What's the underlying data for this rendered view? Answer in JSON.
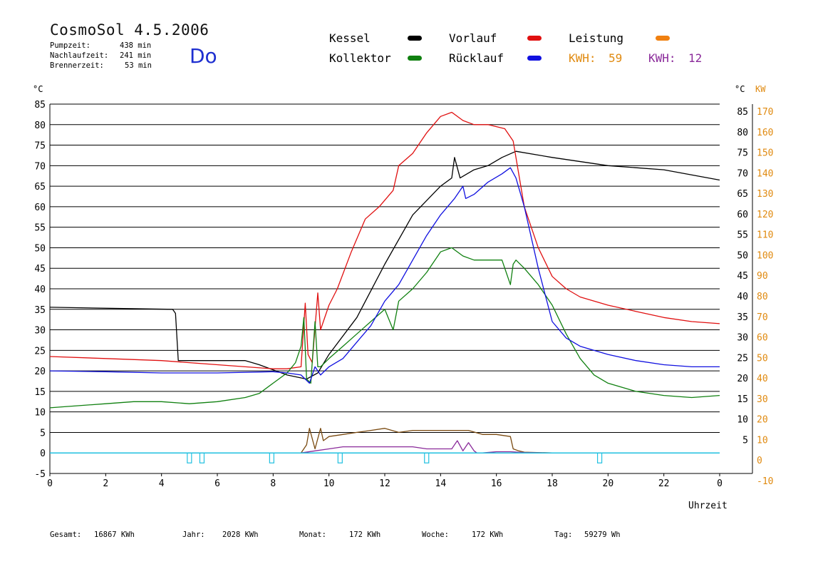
{
  "header": {
    "title": "CosmoSol 4.5.2006",
    "day": "Do",
    "stats": [
      {
        "label": "Pumpzeit:",
        "value": "438 min"
      },
      {
        "label": "Nachlaufzeit:",
        "value": "241 min"
      },
      {
        "label": "Brennerzeit:",
        "value": "53 min"
      }
    ]
  },
  "legend": {
    "kessel": {
      "label": "Kessel",
      "color": "#000000"
    },
    "vorlauf": {
      "label": "Vorlauf",
      "color": "#e01010"
    },
    "leistung": {
      "label": "Leistung",
      "color": "#f08010"
    },
    "kollektor": {
      "label": "Kollektor",
      "color": "#108010"
    },
    "ruecklauf": {
      "label": "Rücklauf",
      "color": "#1010e0"
    },
    "kwh1": {
      "label": "KWH:",
      "value": "59",
      "color": "#e08a10"
    },
    "kwh2": {
      "label": "KWH:",
      "value": "12",
      "color": "#8a2a9a"
    }
  },
  "axes": {
    "left_unit": "°C",
    "right_unit_c": "°C",
    "right_unit_kw": "KW",
    "xlabel": "Uhrzeit"
  },
  "footer": [
    {
      "label": "Gesamt:",
      "value": "16867 KWh"
    },
    {
      "label": "Jahr:",
      "value": "2028 KWh"
    },
    {
      "label": "Monat:",
      "value": "172 KWh"
    },
    {
      "label": "Woche:",
      "value": "172 KWh"
    },
    {
      "label": "Tag:",
      "value": "59279 Wh"
    }
  ],
  "chart_data": {
    "type": "line",
    "xlim": [
      0,
      24
    ],
    "ylim": [
      -5,
      85
    ],
    "x_ticks": [
      "0",
      "2",
      "4",
      "6",
      "8",
      "10",
      "12",
      "14",
      "16",
      "18",
      "20",
      "22",
      "0"
    ],
    "y_ticks_left": [
      "85",
      "80",
      "75",
      "70",
      "65",
      "60",
      "55",
      "50",
      "45",
      "40",
      "35",
      "30",
      "25",
      "20",
      "15",
      "10",
      "5",
      "0",
      "-5"
    ],
    "y_ticks_right_c": [
      "85",
      "80",
      "75",
      "70",
      "65",
      "60",
      "55",
      "50",
      "45",
      "40",
      "35",
      "30",
      "25",
      "20",
      "15",
      "10",
      "5"
    ],
    "y_ticks_right_kw": [
      "170",
      "160",
      "150",
      "140",
      "130",
      "120",
      "110",
      "100",
      "90",
      "80",
      "70",
      "60",
      "50",
      "40",
      "30",
      "20",
      "10",
      "0",
      "-10"
    ],
    "grid": true,
    "series": [
      {
        "name": "Kessel",
        "color": "#000000",
        "x": [
          0,
          4.4,
          4.5,
          4.6,
          5,
          6,
          7,
          7.5,
          8.5,
          9.2,
          9.6,
          10,
          11,
          12,
          13,
          14,
          14.4,
          14.5,
          14.7,
          15.2,
          15.7,
          16.2,
          16.7,
          18,
          20,
          22,
          24
        ],
        "y": [
          35.5,
          35,
          34,
          22.5,
          22.5,
          22.5,
          22.5,
          21.5,
          19,
          18,
          19.5,
          24,
          33,
          46,
          58,
          65,
          67,
          72,
          67,
          69,
          70,
          72,
          73.5,
          72,
          70,
          69,
          66.5
        ]
      },
      {
        "name": "Vorlauf",
        "color": "#e01010",
        "x": [
          0,
          2,
          4,
          5,
          6,
          7,
          8,
          8.5,
          9.0,
          9.15,
          9.25,
          9.4,
          9.6,
          9.7,
          9.8,
          10,
          10.3,
          10.8,
          11.3,
          11.8,
          12.3,
          12.5,
          13,
          13.5,
          14,
          14.4,
          14.8,
          15.2,
          15.7,
          16.3,
          16.6,
          17,
          17.5,
          18,
          18.5,
          19,
          20,
          21,
          22,
          23,
          24
        ],
        "y": [
          23.5,
          23,
          22.5,
          22,
          21.5,
          21,
          20.5,
          20.5,
          21,
          36.5,
          24,
          22,
          39,
          30,
          32,
          36,
          40,
          49,
          57,
          60,
          64,
          70,
          73,
          78,
          82,
          83,
          81,
          80,
          80,
          79,
          76,
          60,
          50,
          43,
          40,
          38,
          36,
          34.5,
          33,
          32,
          31.5
        ]
      },
      {
        "name": "Kollektor",
        "color": "#108010",
        "x": [
          0,
          1,
          2,
          3,
          4,
          5,
          6,
          7,
          7.5,
          8,
          8.5,
          8.8,
          9.0,
          9.1,
          9.2,
          9.35,
          9.5,
          9.6,
          9.7,
          10,
          10.5,
          11,
          11.5,
          12,
          12.3,
          12.5,
          13,
          13.5,
          14,
          14.4,
          14.8,
          15.2,
          15.7,
          16.2,
          16.5,
          16.6,
          16.7,
          17,
          17.5,
          18,
          18.5,
          19,
          19.5,
          20,
          21,
          22,
          23,
          24
        ],
        "y": [
          11,
          11.5,
          12,
          12.5,
          12.5,
          12,
          12.5,
          13.5,
          14.5,
          17,
          19.5,
          22,
          26,
          33,
          18,
          17,
          32,
          21,
          21,
          23,
          26,
          29,
          32,
          35,
          30,
          37,
          40,
          44,
          49,
          50,
          48,
          47,
          47,
          47,
          41,
          46,
          47,
          45,
          41,
          36,
          29,
          23,
          19,
          17,
          15,
          14,
          13.5,
          14
        ]
      },
      {
        "name": "Rücklauf",
        "color": "#1010e0",
        "x": [
          0,
          2,
          4,
          6,
          8,
          8.5,
          9,
          9.3,
          9.5,
          9.7,
          10,
          10.5,
          11,
          11.5,
          12,
          12.5,
          13,
          13.5,
          14,
          14.5,
          14.8,
          14.9,
          15.2,
          15.7,
          16.2,
          16.5,
          16.7,
          17,
          17.5,
          18,
          18.5,
          19,
          20,
          21,
          22,
          23,
          24
        ],
        "y": [
          20,
          19.8,
          19.5,
          19.5,
          19.8,
          19.5,
          19,
          17,
          21,
          19,
          21,
          23,
          27,
          31,
          37,
          41,
          47,
          53,
          58,
          62,
          65,
          62,
          63,
          66,
          68,
          69.5,
          67,
          60,
          45,
          32,
          28,
          26,
          24,
          22.5,
          21.5,
          21,
          21
        ]
      },
      {
        "name": "Leistung",
        "color": "#7a4a10",
        "x": [
          9,
          9.2,
          9.3,
          9.5,
          9.7,
          9.8,
          10,
          10.5,
          11,
          11.5,
          12,
          12.5,
          13,
          13.5,
          14,
          14.5,
          15,
          15.5,
          16,
          16.5,
          16.6,
          16.8,
          17,
          18
        ],
        "y": [
          0,
          2,
          6,
          1,
          6,
          3,
          4,
          4.5,
          5,
          5.5,
          6,
          5,
          5.5,
          5.5,
          5.5,
          5.5,
          5.5,
          4.5,
          4.5,
          4,
          1,
          0.5,
          0.2,
          0
        ]
      },
      {
        "name": "Leistung2",
        "color": "#8a2a9a",
        "x": [
          9,
          9.5,
          10,
          10.5,
          11,
          11.5,
          12,
          12.5,
          13,
          13.5,
          14,
          14.4,
          14.6,
          14.8,
          15,
          15.2,
          15.3,
          15.5,
          16,
          16.5,
          17,
          18
        ],
        "y": [
          0,
          0.5,
          1,
          1.5,
          1.5,
          1.5,
          1.5,
          1.5,
          1.5,
          1,
          1,
          1,
          3,
          0.5,
          2.5,
          0.5,
          0,
          0,
          0.3,
          0.3,
          0.1,
          0
        ]
      }
    ],
    "markers": {
      "color": "#20c0e0",
      "x": [
        5.0,
        5.45,
        7.95,
        10.4,
        13.5,
        19.7
      ]
    }
  }
}
